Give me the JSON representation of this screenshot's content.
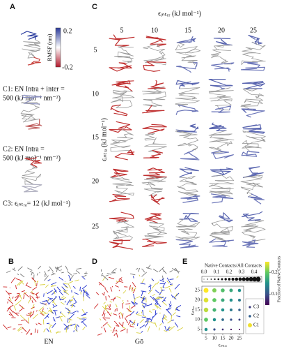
{
  "panels": {
    "a": "A",
    "b": "B",
    "c": "C",
    "d": "D",
    "e": "E"
  },
  "panel_a": {
    "colorbar": {
      "label": "RMSF (nm)",
      "max": "0.2",
      "min": "-0.2"
    },
    "captions": [
      [
        "C1: EN Intra + inter =",
        "500 (kJ mol⁻¹ nm⁻²)"
      ],
      [
        "C2: EN Intra =",
        "500 (kJ mol⁻¹ nm⁻²)"
      ],
      [
        "C3: ϵᵢₙₜᵣₐ= 12 (kJ mol⁻¹)"
      ]
    ]
  },
  "panel_c": {
    "x_title": "ϵᵢₙₜₑᵣ (kJ mol⁻¹)",
    "y_title": "ϵᵢₙₜᵣₐ (kJ mol⁻¹)",
    "columns": [
      "5",
      "10",
      "15",
      "20",
      "25"
    ],
    "rows": [
      "5",
      "10",
      "15",
      "20",
      "25"
    ]
  },
  "panel_b": {
    "label": "EN"
  },
  "panel_d": {
    "label": "Gō"
  },
  "panel_e": {
    "top_title": "Native Contacts/All Contacts",
    "top_ticks": [
      "0.0",
      "0.1",
      "0.2",
      "0.3",
      "0.4"
    ],
    "x_title": "ϵᵢₙₜₑᵣ",
    "y_title": "ϵᵢₙₜᵣₐ",
    "xticks": [
      5,
      10,
      15,
      20,
      25
    ],
    "yticks": [
      5,
      10,
      15,
      20,
      25
    ],
    "values": [
      [
        0.15,
        0.1,
        0.08,
        0.06,
        0.05
      ],
      [
        0.2,
        0.15,
        0.12,
        0.1,
        0.09
      ],
      [
        0.23,
        0.18,
        0.15,
        0.13,
        0.11
      ],
      [
        0.24,
        0.2,
        0.17,
        0.15,
        0.13
      ],
      [
        0.25,
        0.21,
        0.19,
        0.17,
        0.15
      ]
    ],
    "legend": [
      "C3",
      "C2",
      "C1"
    ],
    "colorbar": {
      "title": "Fraction of Native Contacts",
      "ticks": [
        0.1,
        0.2
      ],
      "clim": [
        0.05,
        0.25
      ]
    }
  }
}
